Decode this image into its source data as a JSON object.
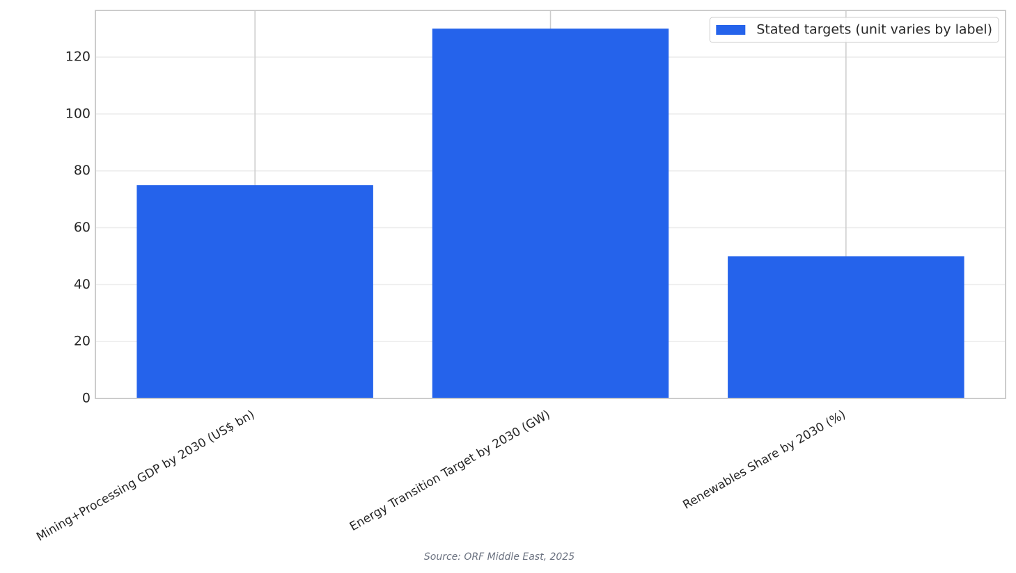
{
  "chart_data": {
    "type": "bar",
    "categories": [
      "Mining+Processing GDP by 2030 (US$ bn)",
      "Energy Transition Target by 2030 (GW)",
      "Renewables Share by 2030 (%)"
    ],
    "series": [
      {
        "name": "Stated targets (unit varies by label)",
        "color": "#2563eb",
        "values": [
          75,
          130,
          50
        ]
      }
    ],
    "ylim": [
      0,
      136.4
    ],
    "yticks": [
      0,
      20,
      40,
      60,
      80,
      100,
      120
    ],
    "grid": true,
    "legend": "upper right",
    "source": "Source: ORF Middle East, 2025"
  }
}
